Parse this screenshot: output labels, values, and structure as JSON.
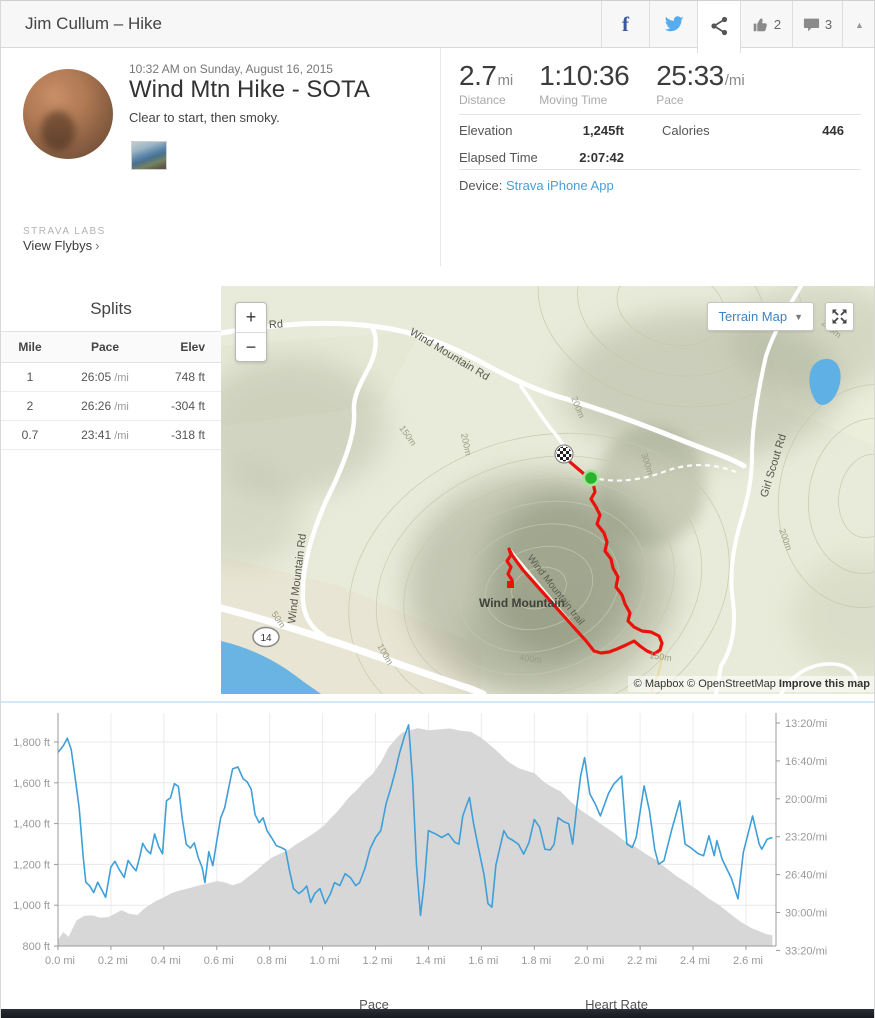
{
  "header": {
    "title": "Jim Cullum – Hike",
    "kudos_count": "2",
    "comment_count": "3",
    "collapse_icon": "▲",
    "facebook_glyph": "f"
  },
  "summary": {
    "timestamp": "10:32 AM on Sunday, August 16, 2015",
    "title": "Wind Mtn Hike - SOTA",
    "description": "Clear to start, then smoky.",
    "labs_label": "STRAVA LABS",
    "flybys_label": "View Flybys",
    "flybys_chevron": "›",
    "stats": [
      {
        "value": "2.7",
        "unit": "mi",
        "label": "Distance"
      },
      {
        "value": "1:10:36",
        "unit": "",
        "label": "Moving Time"
      },
      {
        "value": "25:33",
        "unit": "/mi",
        "label": "Pace"
      }
    ],
    "details": {
      "row1_label1": "Elevation",
      "row1_value1": "1,245ft",
      "row1_label2": "Calories",
      "row1_value2": "446",
      "row2_label1": "Elapsed Time",
      "row2_value1": "2:07:42"
    },
    "device_label": "Device:",
    "device_link": "Strava iPhone App"
  },
  "splits": {
    "title": "Splits",
    "columns": [
      "Mile",
      "Pace",
      "Elev"
    ],
    "rows": [
      {
        "mile": "1",
        "pace": "26:05",
        "pace_unit": " /mi",
        "elev": "748 ft"
      },
      {
        "mile": "2",
        "pace": "26:26",
        "pace_unit": " /mi",
        "elev": "-304 ft"
      },
      {
        "mile": "0.7",
        "pace": "23:41",
        "pace_unit": " /mi",
        "elev": "-318 ft"
      }
    ]
  },
  "map": {
    "controls": {
      "zoom_in": "+",
      "zoom_out": "−",
      "layer_button": "Terrain Map",
      "caret": "▼"
    },
    "attribution": {
      "mapbox": "© Mapbox",
      "osm": "© OpenStreetMap",
      "improve": "Improve this map"
    },
    "labels": {
      "place": "Wind Mountain",
      "trail": "Wind Mountain trail",
      "road_main": "Wind Mountain Rd",
      "road_west": "Wind Mountain Rd",
      "road_cutoff": "t-Off Rd",
      "road_girl_scout": "Girl Scout Rd",
      "highway_shield": "14",
      "contours": [
        "250m",
        "200m",
        "150m",
        "200m",
        "300m",
        "150m",
        "400m",
        "50m",
        "100m",
        "200m"
      ]
    }
  },
  "chart_data": {
    "type": "area+line",
    "title": "",
    "xlabel": "",
    "x_unit": "mi",
    "x_max": 2.72,
    "grid": true,
    "x_ticks": [
      {
        "v": 0.0,
        "label": "0.0 mi"
      },
      {
        "v": 0.2,
        "label": "0.2 mi"
      },
      {
        "v": 0.4,
        "label": "0.4 mi"
      },
      {
        "v": 0.6,
        "label": "0.6 mi"
      },
      {
        "v": 0.8,
        "label": "0.8 mi"
      },
      {
        "v": 1.0,
        "label": "1.0 mi"
      },
      {
        "v": 1.2,
        "label": "1.2 mi"
      },
      {
        "v": 1.4,
        "label": "1.4 mi"
      },
      {
        "v": 1.6,
        "label": "1.6 mi"
      },
      {
        "v": 1.8,
        "label": "1.8 mi"
      },
      {
        "v": 2.0,
        "label": "2.0 mi"
      },
      {
        "v": 2.2,
        "label": "2.2 mi"
      },
      {
        "v": 2.4,
        "label": "2.4 mi"
      },
      {
        "v": 2.6,
        "label": "2.6 mi"
      }
    ],
    "left_axis": {
      "unit": "ft",
      "min": 800,
      "max": 1940,
      "ticks": [
        {
          "v": 800,
          "label": "800 ft"
        },
        {
          "v": 1000,
          "label": "1,000 ft"
        },
        {
          "v": 1200,
          "label": "1,200 ft"
        },
        {
          "v": 1400,
          "label": "1,400 ft"
        },
        {
          "v": 1600,
          "label": "1,600 ft"
        },
        {
          "v": 1800,
          "label": "1,800 ft"
        }
      ]
    },
    "right_axis": {
      "unit": "/mi",
      "min_seconds": 800,
      "max_seconds": 2030,
      "ticks": [
        {
          "s": 800,
          "label": "13:20/mi"
        },
        {
          "s": 1000,
          "label": "16:40/mi"
        },
        {
          "s": 1200,
          "label": "20:00/mi"
        },
        {
          "s": 1400,
          "label": "23:20/mi"
        },
        {
          "s": 1600,
          "label": "26:40/mi"
        },
        {
          "s": 1800,
          "label": "30:00/mi"
        },
        {
          "s": 2000,
          "label": "33:20/mi"
        }
      ]
    },
    "series": [
      {
        "name": "Elevation",
        "type": "area",
        "axis": "left",
        "color": "#d7d7d7",
        "points": [
          [
            0.0,
            830
          ],
          [
            0.02,
            868
          ],
          [
            0.04,
            845
          ],
          [
            0.07,
            925
          ],
          [
            0.1,
            948
          ],
          [
            0.13,
            950
          ],
          [
            0.16,
            938
          ],
          [
            0.19,
            942
          ],
          [
            0.22,
            962
          ],
          [
            0.24,
            975
          ],
          [
            0.27,
            958
          ],
          [
            0.3,
            952
          ],
          [
            0.33,
            988
          ],
          [
            0.37,
            1020
          ],
          [
            0.4,
            1038
          ],
          [
            0.43,
            1060
          ],
          [
            0.46,
            1072
          ],
          [
            0.5,
            1085
          ],
          [
            0.53,
            1096
          ],
          [
            0.56,
            1105
          ],
          [
            0.6,
            1118
          ],
          [
            0.63,
            1112
          ],
          [
            0.66,
            1098
          ],
          [
            0.69,
            1110
          ],
          [
            0.72,
            1140
          ],
          [
            0.75,
            1170
          ],
          [
            0.78,
            1205
          ],
          [
            0.81,
            1235
          ],
          [
            0.84,
            1252
          ],
          [
            0.87,
            1270
          ],
          [
            0.9,
            1298
          ],
          [
            0.94,
            1330
          ],
          [
            0.97,
            1356
          ],
          [
            1.0,
            1385
          ],
          [
            1.03,
            1425
          ],
          [
            1.06,
            1465
          ],
          [
            1.1,
            1530
          ],
          [
            1.13,
            1565
          ],
          [
            1.16,
            1610
          ],
          [
            1.19,
            1645
          ],
          [
            1.22,
            1700
          ],
          [
            1.25,
            1775
          ],
          [
            1.28,
            1820
          ],
          [
            1.3,
            1845
          ],
          [
            1.33,
            1858
          ],
          [
            1.36,
            1868
          ],
          [
            1.4,
            1858
          ],
          [
            1.44,
            1862
          ],
          [
            1.48,
            1866
          ],
          [
            1.52,
            1856
          ],
          [
            1.56,
            1850
          ],
          [
            1.6,
            1820
          ],
          [
            1.63,
            1788
          ],
          [
            1.66,
            1755
          ],
          [
            1.7,
            1705
          ],
          [
            1.74,
            1672
          ],
          [
            1.78,
            1655
          ],
          [
            1.8,
            1648
          ],
          [
            1.84,
            1600
          ],
          [
            1.88,
            1570
          ],
          [
            1.9,
            1558
          ],
          [
            1.94,
            1505
          ],
          [
            1.98,
            1462
          ],
          [
            2.02,
            1428
          ],
          [
            2.06,
            1390
          ],
          [
            2.1,
            1356
          ],
          [
            2.14,
            1316
          ],
          [
            2.18,
            1288
          ],
          [
            2.22,
            1252
          ],
          [
            2.26,
            1222
          ],
          [
            2.3,
            1180
          ],
          [
            2.34,
            1140
          ],
          [
            2.38,
            1108
          ],
          [
            2.42,
            1072
          ],
          [
            2.46,
            1032
          ],
          [
            2.5,
            1000
          ],
          [
            2.54,
            958
          ],
          [
            2.58,
            918
          ],
          [
            2.62,
            888
          ],
          [
            2.65,
            872
          ],
          [
            2.68,
            858
          ],
          [
            2.7,
            852
          ]
        ]
      },
      {
        "name": "Pace",
        "type": "line",
        "axis": "right",
        "color": "#3f9fd8",
        "points": [
          [
            0.0,
            955
          ],
          [
            0.02,
            920
          ],
          [
            0.035,
            880
          ],
          [
            0.05,
            940
          ],
          [
            0.065,
            1090
          ],
          [
            0.08,
            1250
          ],
          [
            0.095,
            1500
          ],
          [
            0.105,
            1640
          ],
          [
            0.12,
            1660
          ],
          [
            0.135,
            1695
          ],
          [
            0.15,
            1640
          ],
          [
            0.165,
            1680
          ],
          [
            0.18,
            1720
          ],
          [
            0.2,
            1560
          ],
          [
            0.215,
            1530
          ],
          [
            0.23,
            1570
          ],
          [
            0.25,
            1615
          ],
          [
            0.265,
            1525
          ],
          [
            0.28,
            1555
          ],
          [
            0.295,
            1580
          ],
          [
            0.31,
            1500
          ],
          [
            0.32,
            1435
          ],
          [
            0.335,
            1470
          ],
          [
            0.35,
            1490
          ],
          [
            0.365,
            1385
          ],
          [
            0.38,
            1450
          ],
          [
            0.395,
            1490
          ],
          [
            0.41,
            1210
          ],
          [
            0.425,
            1195
          ],
          [
            0.44,
            1120
          ],
          [
            0.455,
            1135
          ],
          [
            0.47,
            1310
          ],
          [
            0.485,
            1440
          ],
          [
            0.5,
            1460
          ],
          [
            0.515,
            1432
          ],
          [
            0.53,
            1510
          ],
          [
            0.545,
            1563
          ],
          [
            0.555,
            1642
          ],
          [
            0.57,
            1479
          ],
          [
            0.585,
            1553
          ],
          [
            0.6,
            1421
          ],
          [
            0.615,
            1300
          ],
          [
            0.63,
            1247
          ],
          [
            0.645,
            1142
          ],
          [
            0.66,
            1042
          ],
          [
            0.68,
            1032
          ],
          [
            0.7,
            1095
          ],
          [
            0.715,
            1111
          ],
          [
            0.73,
            1150
          ],
          [
            0.745,
            1284
          ],
          [
            0.76,
            1326
          ],
          [
            0.775,
            1300
          ],
          [
            0.79,
            1368
          ],
          [
            0.81,
            1411
          ],
          [
            0.825,
            1447
          ],
          [
            0.845,
            1458
          ],
          [
            0.86,
            1470
          ],
          [
            0.875,
            1579
          ],
          [
            0.89,
            1674
          ],
          [
            0.91,
            1700
          ],
          [
            0.925,
            1684
          ],
          [
            0.94,
            1660
          ],
          [
            0.955,
            1747
          ],
          [
            0.97,
            1700
          ],
          [
            0.99,
            1674
          ],
          [
            1.01,
            1753
          ],
          [
            1.03,
            1700
          ],
          [
            1.045,
            1642
          ],
          [
            1.065,
            1658
          ],
          [
            1.085,
            1595
          ],
          [
            1.105,
            1616
          ],
          [
            1.125,
            1658
          ],
          [
            1.14,
            1642
          ],
          [
            1.16,
            1568
          ],
          [
            1.18,
            1463
          ],
          [
            1.2,
            1405
          ],
          [
            1.22,
            1368
          ],
          [
            1.24,
            1226
          ],
          [
            1.26,
            1132
          ],
          [
            1.275,
            1053
          ],
          [
            1.29,
            963
          ],
          [
            1.31,
            868
          ],
          [
            1.325,
            810
          ],
          [
            1.34,
            1100
          ],
          [
            1.355,
            1550
          ],
          [
            1.37,
            1816
          ],
          [
            1.385,
            1632
          ],
          [
            1.4,
            1368
          ],
          [
            1.425,
            1384
          ],
          [
            1.45,
            1404
          ],
          [
            1.475,
            1384
          ],
          [
            1.5,
            1430
          ],
          [
            1.515,
            1439
          ],
          [
            1.53,
            1290
          ],
          [
            1.545,
            1230
          ],
          [
            1.555,
            1193
          ],
          [
            1.57,
            1326
          ],
          [
            1.59,
            1466
          ],
          [
            1.61,
            1600
          ],
          [
            1.625,
            1753
          ],
          [
            1.64,
            1772
          ],
          [
            1.655,
            1550
          ],
          [
            1.67,
            1458
          ],
          [
            1.685,
            1368
          ],
          [
            1.7,
            1404
          ],
          [
            1.72,
            1420
          ],
          [
            1.74,
            1440
          ],
          [
            1.76,
            1492
          ],
          [
            1.78,
            1430
          ],
          [
            1.8,
            1309
          ],
          [
            1.82,
            1350
          ],
          [
            1.84,
            1466
          ],
          [
            1.86,
            1470
          ],
          [
            1.875,
            1440
          ],
          [
            1.89,
            1299
          ],
          [
            1.91,
            1320
          ],
          [
            1.93,
            1332
          ],
          [
            1.945,
            1439
          ],
          [
            1.96,
            1250
          ],
          [
            1.975,
            1080
          ],
          [
            1.99,
            983
          ],
          [
            2.01,
            1173
          ],
          [
            2.03,
            1226
          ],
          [
            2.05,
            1290
          ],
          [
            2.08,
            1173
          ],
          [
            2.1,
            1123
          ],
          [
            2.13,
            1080
          ],
          [
            2.15,
            1439
          ],
          [
            2.17,
            1457
          ],
          [
            2.185,
            1404
          ],
          [
            2.215,
            1132
          ],
          [
            2.235,
            1261
          ],
          [
            2.255,
            1466
          ],
          [
            2.27,
            1545
          ],
          [
            2.29,
            1527
          ],
          [
            2.32,
            1360
          ],
          [
            2.35,
            1211
          ],
          [
            2.37,
            1439
          ],
          [
            2.39,
            1457
          ],
          [
            2.42,
            1490
          ],
          [
            2.44,
            1500
          ],
          [
            2.46,
            1395
          ],
          [
            2.48,
            1500
          ],
          [
            2.49,
            1421
          ],
          [
            2.51,
            1518
          ],
          [
            2.545,
            1620
          ],
          [
            2.57,
            1728
          ],
          [
            2.59,
            1483
          ],
          [
            2.625,
            1290
          ],
          [
            2.65,
            1439
          ],
          [
            2.66,
            1466
          ],
          [
            2.68,
            1413
          ],
          [
            2.7,
            1404
          ]
        ]
      }
    ],
    "legend": [
      "Pace",
      "Heart Rate"
    ],
    "legend_position": "bottom"
  },
  "footer_tabs": {
    "pace": "Pace",
    "heart_rate": "Heart Rate"
  }
}
